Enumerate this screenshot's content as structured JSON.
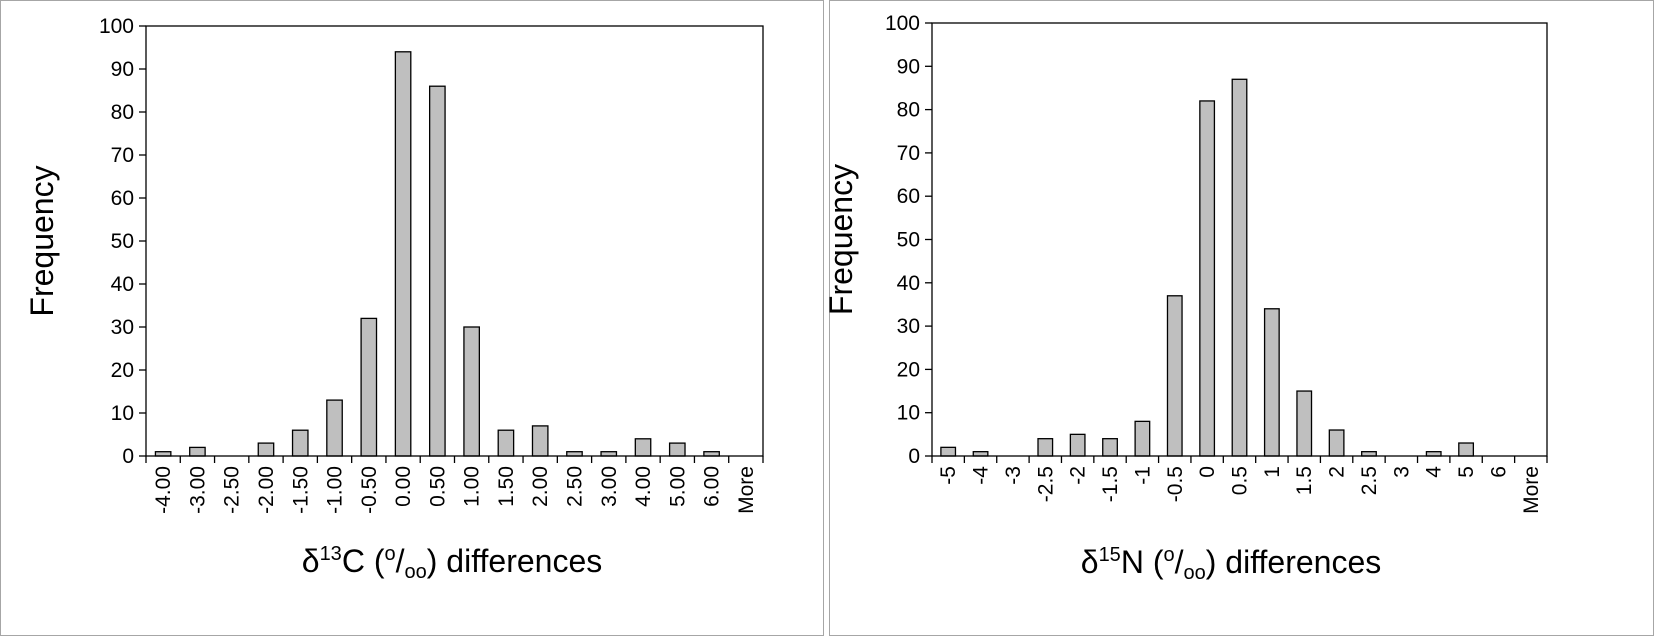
{
  "chart_data": [
    {
      "type": "bar",
      "ylabel": "Frequency",
      "xlabel_parts": {
        "prefix": "δ",
        "sup": "13",
        "element": "C (",
        "unit_sup": "o",
        "slash": "/",
        "unit_sub": "oo",
        "suffix": ") differences"
      },
      "ylim": [
        0,
        100
      ],
      "yticks": [
        "0",
        "10",
        "20",
        "30",
        "40",
        "50",
        "60",
        "70",
        "80",
        "90",
        "100"
      ],
      "categories": [
        "-4.00",
        "-3.00",
        "-2.50",
        "-2.00",
        "-1.50",
        "-1.00",
        "-0.50",
        "0.00",
        "0.50",
        "1.00",
        "1.50",
        "2.00",
        "2.50",
        "3.00",
        "4.00",
        "5.00",
        "6.00",
        "More"
      ],
      "values": [
        1,
        2,
        0,
        3,
        6,
        13,
        32,
        94,
        86,
        30,
        6,
        7,
        1,
        1,
        4,
        3,
        1,
        0
      ],
      "grid": false,
      "bar_color": "#bfbfbf"
    },
    {
      "type": "bar",
      "ylabel": "Frequency",
      "xlabel_parts": {
        "prefix": "δ",
        "sup": "15",
        "element": "N (",
        "unit_sup": "o",
        "slash": "/",
        "unit_sub": "oo",
        "suffix": ") differences"
      },
      "ylim": [
        0,
        100
      ],
      "yticks": [
        "0",
        "10",
        "20",
        "30",
        "40",
        "50",
        "60",
        "70",
        "80",
        "90",
        "100"
      ],
      "categories": [
        "-5",
        "-4",
        "-3",
        "-2.5",
        "-2",
        "-1.5",
        "-1",
        "-0.5",
        "0",
        "0.5",
        "1",
        "1.5",
        "2",
        "2.5",
        "3",
        "4",
        "5",
        "6",
        "More"
      ],
      "values": [
        2,
        1,
        0,
        4,
        5,
        4,
        8,
        37,
        82,
        87,
        34,
        15,
        6,
        1,
        0,
        1,
        3,
        0,
        0
      ],
      "grid": false,
      "bar_color": "#bfbfbf"
    }
  ]
}
